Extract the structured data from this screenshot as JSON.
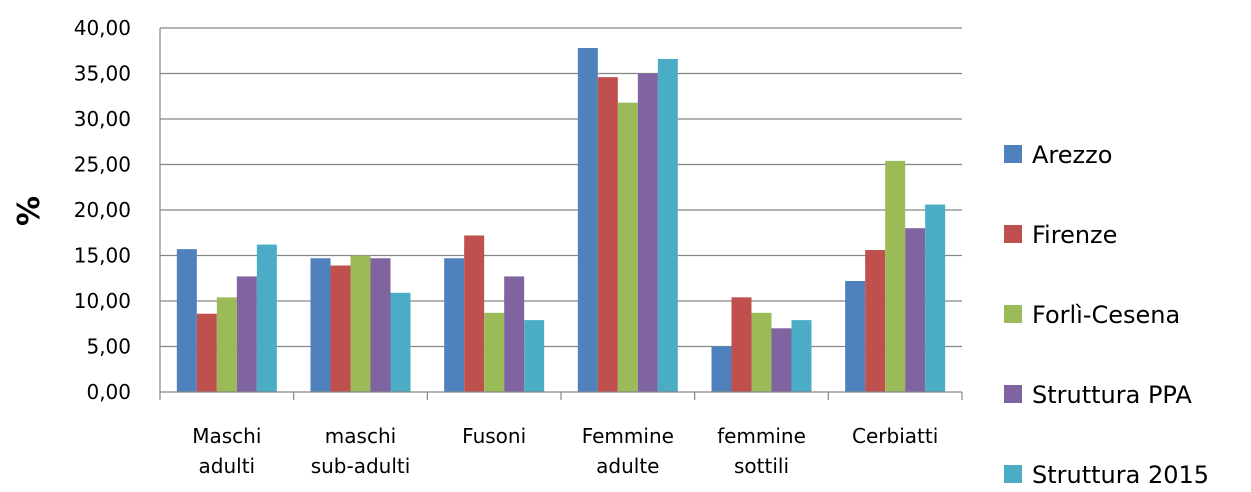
{
  "chart_data": {
    "type": "bar",
    "title": "",
    "xlabel": "",
    "ylabel": "%",
    "ylim": [
      0,
      40
    ],
    "yticks": [
      "0,00",
      "5,00",
      "10,00",
      "15,00",
      "20,00",
      "25,00",
      "30,00",
      "35,00",
      "40,00"
    ],
    "categories": [
      [
        "Maschi",
        "adulti"
      ],
      [
        "maschi",
        "sub-adulti"
      ],
      [
        "Fusoni"
      ],
      [
        "Femmine",
        "adulte"
      ],
      [
        "femmine",
        "sottili"
      ],
      [
        "Cerbiatti"
      ]
    ],
    "grid": true,
    "legend_position": "right",
    "series": [
      {
        "name": "Arezzo",
        "color": "#4F81BD",
        "values": [
          15.7,
          14.7,
          14.7,
          37.8,
          5.0,
          12.2
        ]
      },
      {
        "name": "Firenze",
        "color": "#C0504D",
        "values": [
          8.6,
          13.9,
          17.2,
          34.6,
          10.4,
          15.6
        ]
      },
      {
        "name": "Forlì-Cesena",
        "color": "#9BBB59",
        "values": [
          10.4,
          15.0,
          8.7,
          31.8,
          8.7,
          25.4
        ]
      },
      {
        "name": "Struttura PPA",
        "color": "#8064A2",
        "values": [
          12.7,
          14.7,
          12.7,
          35.0,
          7.0,
          18.0
        ]
      },
      {
        "name": "Struttura 2015",
        "color": "#4BACC6",
        "values": [
          16.2,
          10.9,
          7.9,
          36.6,
          7.9,
          20.6
        ]
      }
    ]
  }
}
